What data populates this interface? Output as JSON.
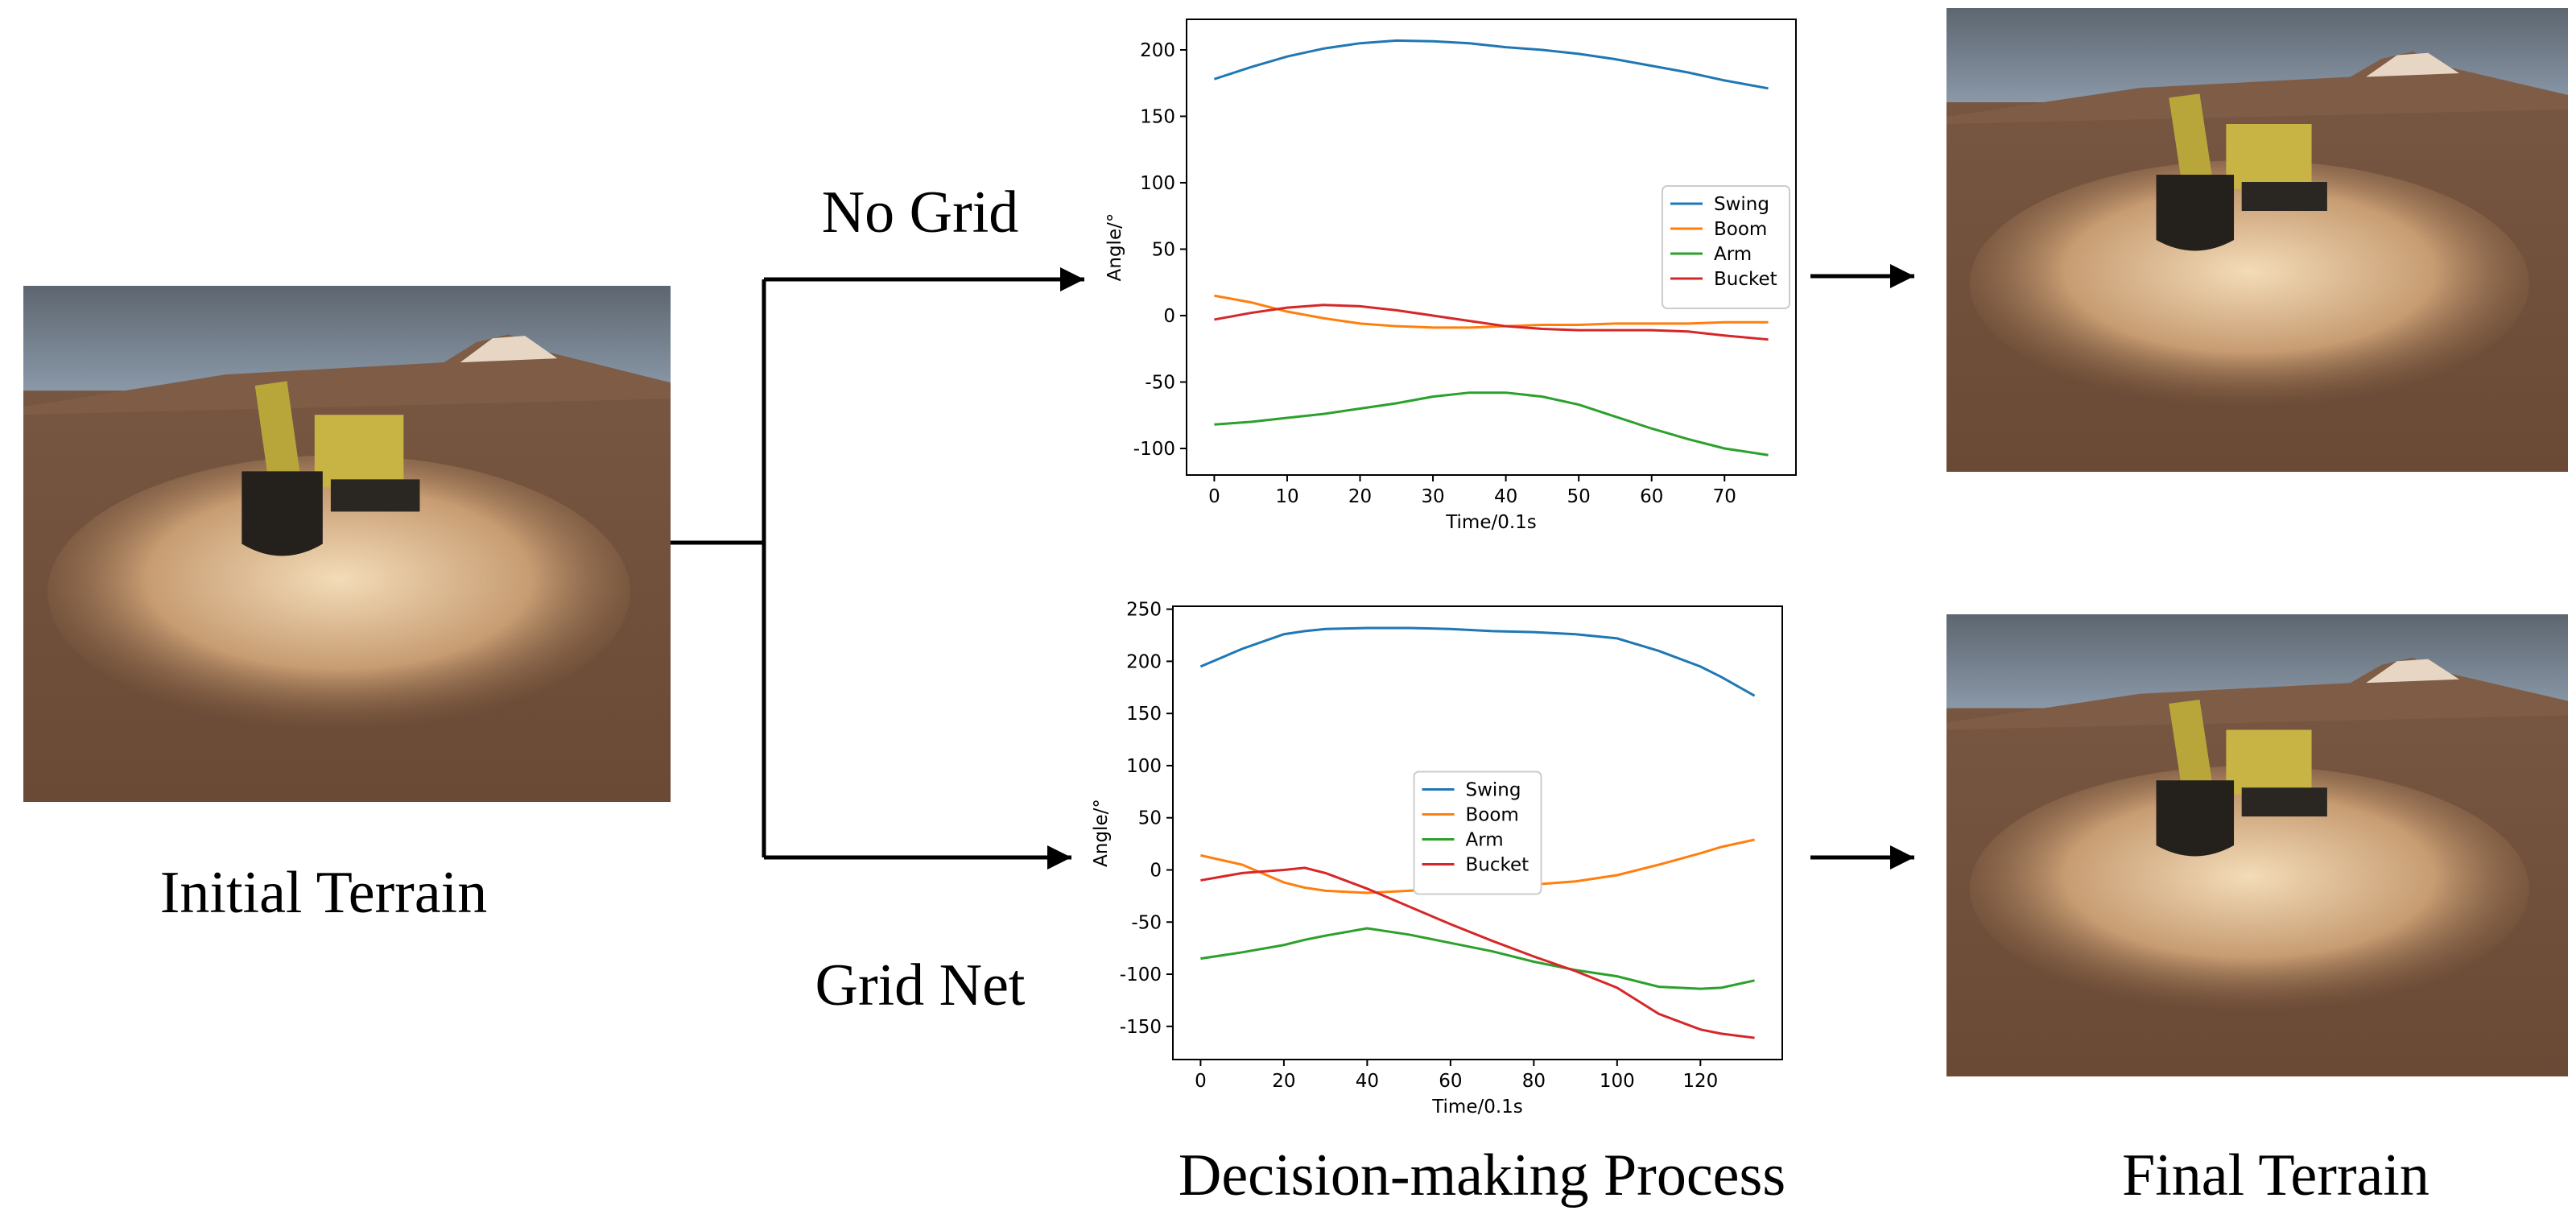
{
  "labels": {
    "initial": "Initial Terrain",
    "no_grid": "No Grid",
    "grid_net": "Grid Net",
    "process": "Decision-making Process",
    "final": "Final Terrain"
  },
  "chart_data": [
    {
      "type": "line",
      "xlabel": "Time/0.1s",
      "ylabel": "Angle/°",
      "legend": "center right",
      "x": [
        0,
        5,
        10,
        15,
        20,
        25,
        30,
        35,
        40,
        45,
        50,
        55,
        60,
        65,
        70,
        76
      ],
      "series": [
        {
          "name": "Swing",
          "color": "#1f77b4",
          "values": [
            178,
            187,
            195,
            201,
            205,
            207,
            206.5,
            205,
            202,
            200,
            197,
            193,
            188,
            183,
            177,
            171
          ]
        },
        {
          "name": "Boom",
          "color": "#ff7f0e",
          "values": [
            15,
            10,
            3,
            -2,
            -6,
            -8,
            -9,
            -9,
            -8,
            -7,
            -7,
            -6,
            -6,
            -6,
            -5,
            -5
          ]
        },
        {
          "name": "Arm",
          "color": "#2ca02c",
          "values": [
            -82,
            -80,
            -77,
            -74,
            -70,
            -66,
            -61,
            -58,
            -58,
            -61,
            -67,
            -76,
            -85,
            -93,
            -100,
            -105
          ]
        },
        {
          "name": "Bucket",
          "color": "#d62728",
          "values": [
            -3,
            2,
            6,
            8,
            7,
            4,
            0,
            -4,
            -8,
            -10,
            -11,
            -11,
            -11,
            -12,
            -15,
            -18
          ]
        }
      ],
      "xlim": [
        -3.8,
        79.8
      ],
      "ylim": [
        -120,
        223
      ],
      "xticks": [
        0,
        10,
        20,
        30,
        40,
        50,
        60,
        70
      ],
      "yticks": [
        -100,
        -50,
        0,
        50,
        100,
        150,
        200
      ]
    },
    {
      "type": "line",
      "xlabel": "Time/0.1s",
      "ylabel": "Angle/°",
      "legend": "center",
      "x": [
        0,
        10,
        20,
        25,
        30,
        40,
        50,
        60,
        70,
        80,
        90,
        100,
        110,
        120,
        125,
        133
      ],
      "series": [
        {
          "name": "Swing",
          "color": "#1f77b4",
          "values": [
            195,
            212,
            226,
            229,
            231,
            232,
            232,
            231,
            229,
            228,
            226,
            222,
            210,
            195,
            185,
            167
          ]
        },
        {
          "name": "Boom",
          "color": "#ff7f0e",
          "values": [
            14,
            5,
            -12,
            -17,
            -20,
            -22,
            -20,
            -18,
            -16,
            -14,
            -11,
            -5,
            5,
            16,
            22,
            29
          ]
        },
        {
          "name": "Arm",
          "color": "#2ca02c",
          "values": [
            -85,
            -79,
            -72,
            -67,
            -63,
            -56,
            -62,
            -70,
            -78,
            -88,
            -96,
            -102,
            -112,
            -114,
            -113,
            -106
          ]
        },
        {
          "name": "Bucket",
          "color": "#d62728",
          "values": [
            -10,
            -3,
            0,
            2,
            -3,
            -18,
            -35,
            -52,
            -68,
            -83,
            -97,
            -113,
            -138,
            -153,
            -157,
            -161
          ]
        }
      ],
      "xlim": [
        -6.65,
        139.65
      ],
      "ylim": [
        -181.8,
        252.8
      ],
      "xticks": [
        0,
        20,
        40,
        60,
        80,
        100,
        120
      ],
      "yticks": [
        -150,
        -100,
        -50,
        0,
        50,
        100,
        150,
        200,
        250
      ]
    }
  ]
}
